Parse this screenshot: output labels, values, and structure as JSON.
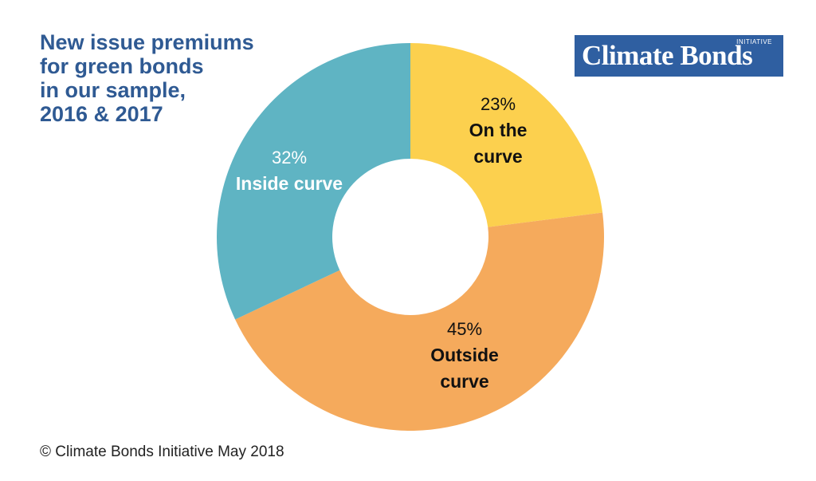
{
  "title_lines": [
    "New issue premiums",
    "for green bonds",
    "in our sample,",
    "2016 & 2017"
  ],
  "logo": {
    "main": "Climate Bonds",
    "small": "INITIATIVE",
    "background": "#2f5fa1",
    "color": "#ffffff"
  },
  "footer": "© Climate Bonds Initiative May 2018",
  "chart_data": {
    "type": "pie",
    "donut": true,
    "start_angle_deg": 0,
    "direction": "clockwise",
    "slices": [
      {
        "value": 23,
        "percent_label": "23%",
        "label_lines": [
          "On the",
          "curve"
        ],
        "color": "#fcd04e",
        "text_color": "#111111"
      },
      {
        "value": 45,
        "percent_label": "45%",
        "label_lines": [
          "Outside",
          "curve"
        ],
        "color": "#f5aa5c",
        "text_color": "#111111"
      },
      {
        "value": 32,
        "percent_label": "32%",
        "label_lines": [
          "Inside curve"
        ],
        "color": "#5fb4c3",
        "text_color": "#ffffff"
      }
    ]
  }
}
